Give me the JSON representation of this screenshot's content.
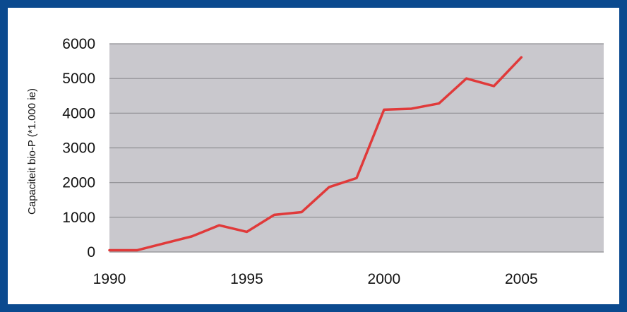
{
  "colors": {
    "frame": "#0b4a8f",
    "plot_background": "#c9c8cd",
    "gridline": "#8e8e92",
    "series_line": "#e03a3a"
  },
  "chart_data": {
    "type": "line",
    "title": "",
    "xlabel": "",
    "ylabel": "Capaciteit bio-P (*1.000 ie)",
    "xlim": [
      1990,
      2008
    ],
    "ylim": [
      0,
      6000
    ],
    "x_ticks": [
      1990,
      1995,
      2000,
      2005
    ],
    "y_ticks": [
      0,
      1000,
      2000,
      3000,
      4000,
      5000,
      6000
    ],
    "x_tick_labels": [
      "1990",
      "1995",
      "2000",
      "2005"
    ],
    "y_tick_labels": [
      "0",
      "1000",
      "2000",
      "3000",
      "4000",
      "5000",
      "6000"
    ],
    "grid": "horizontal",
    "legend": "none",
    "series": [
      {
        "x": [
          1990,
          1991,
          1992,
          1993,
          1994,
          1995,
          1996,
          1997,
          1998,
          1999,
          2000,
          2001,
          2002,
          2003,
          2004,
          2005
        ],
        "values": [
          50,
          50,
          250,
          450,
          770,
          580,
          1070,
          1150,
          1870,
          2130,
          4100,
          4130,
          4280,
          5000,
          4780,
          5610
        ]
      }
    ]
  }
}
